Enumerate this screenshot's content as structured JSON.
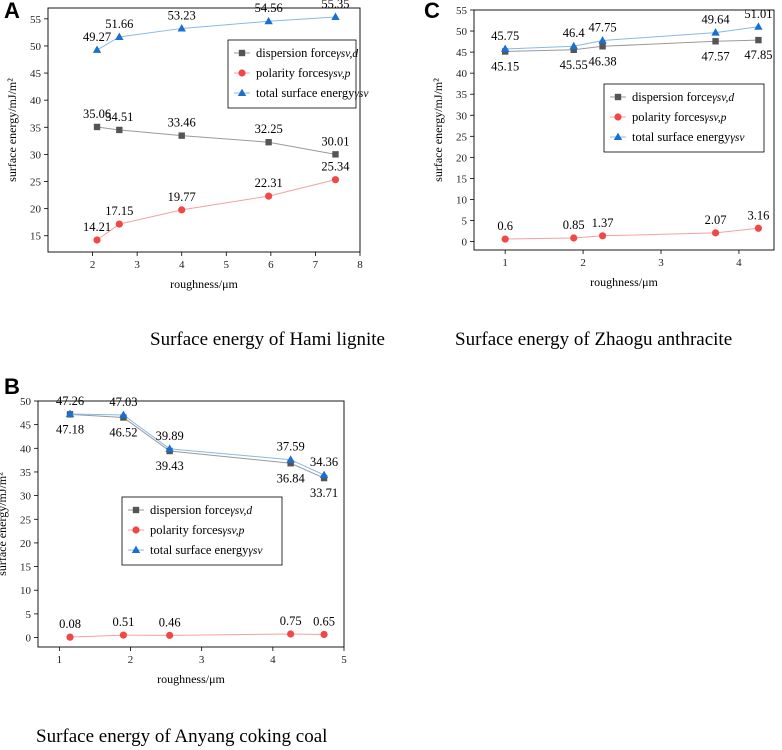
{
  "colors": {
    "dispersion": "#555555",
    "polarity": "#f04848",
    "total": "#1a70d0",
    "dispersion_line": "#9a9a9a",
    "polarity_line": "#f4a0a0",
    "total_line": "#88b8e8"
  },
  "legend_items": [
    {
      "key": "dispersion",
      "label": "dispersion force",
      "sub": "γsv,d"
    },
    {
      "key": "polarity",
      "label": "polarity forces",
      "sub": "γsv,p"
    },
    {
      "key": "total",
      "label": "total surface energy",
      "sub": "γsv"
    }
  ],
  "chart_data": [
    {
      "panel": "A",
      "type": "line",
      "caption": "Surface energy of Hami lignite",
      "xlabel": "roughness/μm",
      "ylabel": "surface energy/mJ/m²",
      "xlim": [
        1,
        8
      ],
      "ylim": [
        12,
        57
      ],
      "xticks": [
        2,
        3,
        4,
        5,
        6,
        7,
        8
      ],
      "yticks": [
        15,
        20,
        25,
        30,
        35,
        40,
        45,
        50,
        55
      ],
      "legend_position": "upper-right",
      "series": [
        {
          "key": "dispersion",
          "name": "dispersion force γsv,d",
          "x": [
            2.1,
            2.6,
            4.0,
            5.95,
            7.45
          ],
          "y": [
            35.06,
            34.51,
            33.46,
            32.25,
            30.01
          ],
          "labels": [
            "35.06",
            "34.51",
            "33.46",
            "32.25",
            "30.01"
          ]
        },
        {
          "key": "polarity",
          "name": "polarity forces γsv,p",
          "x": [
            2.1,
            2.6,
            4.0,
            5.95,
            7.45
          ],
          "y": [
            14.21,
            17.15,
            19.77,
            22.31,
            25.34
          ],
          "labels": [
            "14.21",
            "17.15",
            "19.77",
            "22.31",
            "25.34"
          ]
        },
        {
          "key": "total",
          "name": "total surface energy γsv",
          "x": [
            2.1,
            2.6,
            4.0,
            5.95,
            7.45
          ],
          "y": [
            49.27,
            51.66,
            53.23,
            54.56,
            55.35
          ],
          "labels": [
            "49.27",
            "51.66",
            "53.23",
            "54.56",
            "55.35"
          ]
        }
      ]
    },
    {
      "panel": "B",
      "type": "line",
      "caption": "Surface energy of Anyang coking coal",
      "xlabel": "roughness/μm",
      "ylabel": "surface energy/mJ/m²",
      "xlim": [
        0.7,
        5
      ],
      "ylim": [
        -2,
        50
      ],
      "xticks": [
        1,
        2,
        3,
        4,
        5
      ],
      "yticks": [
        0,
        5,
        10,
        15,
        20,
        25,
        30,
        35,
        40,
        45,
        50
      ],
      "legend_position": "center-left",
      "series": [
        {
          "key": "dispersion",
          "name": "dispersion force γsv,d",
          "x": [
            1.15,
            1.9,
            2.55,
            4.25,
            4.72
          ],
          "y": [
            47.18,
            46.52,
            39.43,
            36.84,
            33.71
          ],
          "labels": [
            "47.18",
            "46.52",
            "39.43",
            "36.84",
            "33.71"
          ]
        },
        {
          "key": "polarity",
          "name": "polarity forces γsv,p",
          "x": [
            1.15,
            1.9,
            2.55,
            4.25,
            4.72
          ],
          "y": [
            0.08,
            0.51,
            0.46,
            0.75,
            0.65
          ],
          "labels": [
            "0.08",
            "0.51",
            "0.46",
            "0.75",
            "0.65"
          ]
        },
        {
          "key": "total",
          "name": "total surface energy γsv",
          "x": [
            1.15,
            1.9,
            2.55,
            4.25,
            4.72
          ],
          "y": [
            47.26,
            47.03,
            39.89,
            37.59,
            34.36
          ],
          "labels": [
            "47.26",
            "47.03",
            "39.89",
            "37.59",
            "34.36"
          ]
        }
      ]
    },
    {
      "panel": "C",
      "type": "line",
      "caption": "Surface energy of Zhaogu anthracite",
      "xlabel": "roughness/μm",
      "ylabel": "surface energy/mJ/m²",
      "xlim": [
        0.6,
        4.45
      ],
      "ylim": [
        -2,
        55
      ],
      "xticks": [
        1,
        2,
        3,
        4
      ],
      "yticks": [
        0,
        5,
        10,
        15,
        20,
        25,
        30,
        35,
        40,
        45,
        50,
        55
      ],
      "legend_position": "center-right",
      "series": [
        {
          "key": "dispersion",
          "name": "dispersion force γsv,d",
          "x": [
            1.0,
            1.88,
            2.25,
            3.7,
            4.25
          ],
          "y": [
            45.15,
            45.55,
            46.38,
            47.57,
            47.85
          ],
          "labels": [
            "45.15",
            "45.55",
            "46.38",
            "47.57",
            "47.85"
          ]
        },
        {
          "key": "polarity",
          "name": "polarity forces γsv,p",
          "x": [
            1.0,
            1.88,
            2.25,
            3.7,
            4.25
          ],
          "y": [
            0.6,
            0.85,
            1.37,
            2.07,
            3.16
          ],
          "labels": [
            "0.6",
            "0.85",
            "1.37",
            "2.07",
            "3.16"
          ]
        },
        {
          "key": "total",
          "name": "total surface energy γsv",
          "x": [
            1.0,
            1.88,
            2.25,
            3.7,
            4.25
          ],
          "y": [
            45.75,
            46.4,
            47.75,
            49.64,
            51.01
          ],
          "labels": [
            "45.75",
            "46.4",
            "47.75",
            "49.64",
            "51.01"
          ]
        }
      ]
    }
  ]
}
